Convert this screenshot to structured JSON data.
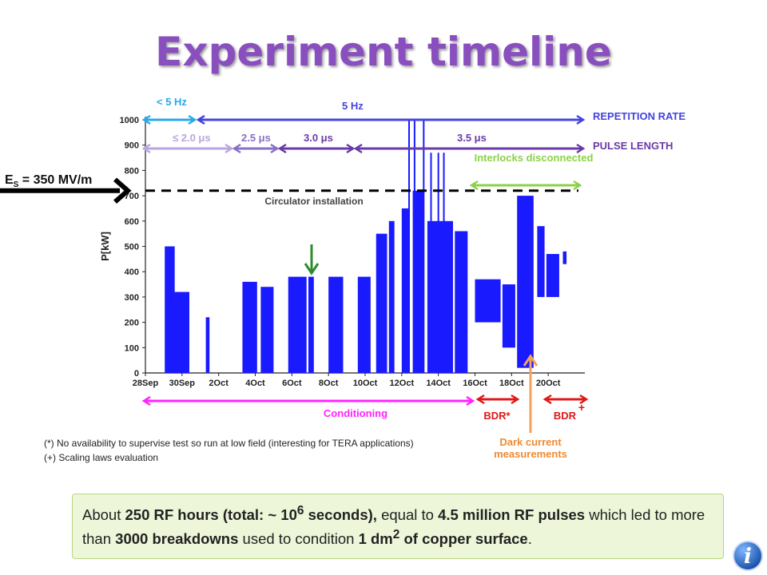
{
  "page": {
    "title": "Experiment timeline"
  },
  "colors": {
    "title": "#8a4fbf",
    "power": "#1a1aff",
    "rep_low": "#2aa9e8",
    "rep_5hz": "#4444dd",
    "pl_light": "#b9a6df",
    "pl_mid": "#8a6fc7",
    "pl_dark": "#6a3aa8",
    "interlock": "#8cd14a",
    "conditioning": "#ff22ff",
    "bdr": "#e01818",
    "dark_current": "#f2a15c",
    "arrow_green": "#2e8b2e"
  },
  "annotations": {
    "es_label": "E",
    "es_sub": "S",
    "es_value": " = 350 MV/m",
    "circulator": "Circulator installation",
    "interlocks": "Interlocks disconnected",
    "rep_rate_low": "< 5 Hz",
    "rep_rate_5hz": "5 Hz",
    "rep_rate_label": "REPETITION RATE",
    "pl_1": "≤ 2.0 μs",
    "pl_2": "2.5 μs",
    "pl_3": "3.0 μs",
    "pl_4": "3.5 μs",
    "pl_label": "PULSE LENGTH",
    "conditioning": "Conditioning",
    "bdr_star": "BDR*",
    "bdr_plus": "BDR",
    "plus_sign": "+",
    "dark_current": "Dark current measurements"
  },
  "footnotes": [
    "(*) No availability to supervise test so run at low field (interesting for TERA applications)",
    "(+) Scaling laws evaluation"
  ],
  "summary": {
    "t1": "About ",
    "b1": "250 RF hours (total: ~ 10",
    "sup1": "6",
    "b1b": " seconds),",
    "t2": " equal to ",
    "b2": "4.5 million RF pulses",
    "t3": " which led to more than ",
    "b3": "3000 breakdowns",
    "t4": " used to condition ",
    "b4": "1 dm",
    "sup2": "2",
    "b5": " of copper surface",
    "t5": "."
  },
  "icon": {
    "name": "info-icon",
    "glyph": "i"
  },
  "chart_data": {
    "type": "line",
    "ylabel": "P[kW]",
    "xlabel": "",
    "ylim": [
      0,
      1000
    ],
    "xlim_days": [
      0,
      24
    ],
    "yticks": [
      0,
      100,
      200,
      300,
      400,
      500,
      600,
      700,
      800,
      900,
      1000
    ],
    "xticks": [
      {
        "label": "28Sep",
        "day": 0
      },
      {
        "label": "30Sep",
        "day": 2
      },
      {
        "label": "2Oct",
        "day": 4
      },
      {
        "label": "4Oct",
        "day": 6
      },
      {
        "label": "6Oct",
        "day": 8
      },
      {
        "label": "8Oct",
        "day": 10
      },
      {
        "label": "10Oct",
        "day": 12
      },
      {
        "label": "12Oct",
        "day": 14
      },
      {
        "label": "14Oct",
        "day": 16
      },
      {
        "label": "16Oct",
        "day": 18
      },
      {
        "label": "18Oct",
        "day": 20
      },
      {
        "label": "20Oct",
        "day": 22
      }
    ],
    "threshold_kw": 720,
    "series": [
      {
        "segments": [
          {
            "x0": 1.1,
            "x1": 1.6,
            "y0": 0,
            "y1": 500
          },
          {
            "x0": 1.3,
            "x1": 2.4,
            "y0": 0,
            "y1": 320
          },
          {
            "x0": 3.3,
            "x1": 3.5,
            "y0": 0,
            "y1": 220
          },
          {
            "x0": 5.3,
            "x1": 6.1,
            "y0": 0,
            "y1": 360
          },
          {
            "x0": 6.3,
            "x1": 7.0,
            "y0": 0,
            "y1": 340
          },
          {
            "x0": 7.8,
            "x1": 8.8,
            "y0": 0,
            "y1": 380
          },
          {
            "x0": 8.9,
            "x1": 9.2,
            "y0": 0,
            "y1": 380
          },
          {
            "x0": 10.0,
            "x1": 10.8,
            "y0": 0,
            "y1": 380
          },
          {
            "x0": 11.6,
            "x1": 12.3,
            "y0": 0,
            "y1": 380
          },
          {
            "x0": 12.6,
            "x1": 13.2,
            "y0": 0,
            "y1": 550
          },
          {
            "x0": 13.3,
            "x1": 13.6,
            "y0": 0,
            "y1": 600
          },
          {
            "x0": 14.0,
            "x1": 14.4,
            "y0": 0,
            "y1": 650
          },
          {
            "x0": 14.6,
            "x1": 15.2,
            "y0": 0,
            "y1": 720
          },
          {
            "x0": 15.4,
            "x1": 16.8,
            "y0": 0,
            "y1": 600
          },
          {
            "x0": 16.9,
            "x1": 17.6,
            "y0": 0,
            "y1": 560
          },
          {
            "x0": 18.0,
            "x1": 19.4,
            "y0": 200,
            "y1": 370
          },
          {
            "x0": 19.5,
            "x1": 20.2,
            "y0": 100,
            "y1": 350
          },
          {
            "x0": 20.3,
            "x1": 21.2,
            "y0": 20,
            "y1": 700
          },
          {
            "x0": 21.4,
            "x1": 21.8,
            "y0": 300,
            "y1": 580
          },
          {
            "x0": 21.9,
            "x1": 22.6,
            "y0": 300,
            "y1": 470
          },
          {
            "x0": 22.8,
            "x1": 23.0,
            "y0": 430,
            "y1": 480
          }
        ],
        "spikes": [
          {
            "x": 1.1,
            "y": 500
          },
          {
            "x": 14.4,
            "y": 1000
          },
          {
            "x": 14.7,
            "y": 1000
          },
          {
            "x": 15.2,
            "y": 1000
          },
          {
            "x": 15.6,
            "y": 870
          },
          {
            "x": 16.0,
            "y": 870
          },
          {
            "x": 16.3,
            "y": 870
          }
        ]
      }
    ]
  }
}
